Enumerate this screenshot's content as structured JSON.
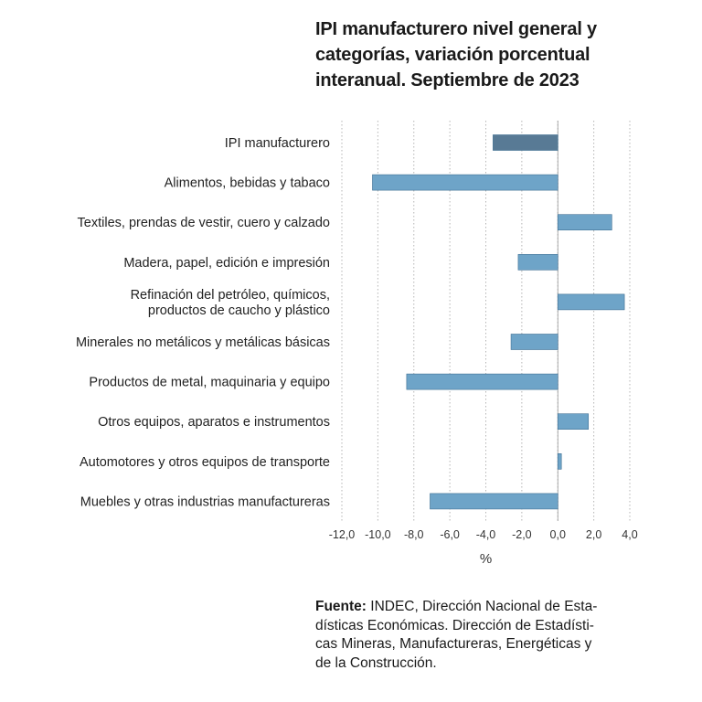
{
  "chart_data": {
    "type": "bar",
    "orientation": "horizontal",
    "title_lines": [
      "IPI manufacturero nivel general y",
      "categorías, variación porcentual",
      "interanual. Septiembre de 2023"
    ],
    "categories": [
      "IPI manufacturero",
      "Alimentos, bebidas y tabaco",
      "Textiles, prendas de vestir, cuero y calzado",
      "Madera, papel, edición e impresión",
      "Refinación del petróleo, químicos,\nproductos de caucho y plástico",
      "Minerales no metálicos y metálicas básicas",
      "Productos de metal, maquinaria y equipo",
      "Otros equipos, aparatos e instrumentos",
      "Automotores y otros equipos de transporte",
      "Muebles y otras industrias manufactureras"
    ],
    "values": [
      -3.6,
      -10.3,
      3.0,
      -2.2,
      3.7,
      -2.6,
      -8.4,
      1.7,
      0.2,
      -7.1
    ],
    "bar_colors": [
      "#587a95",
      "#6ea4c8",
      "#6ea4c8",
      "#6ea4c8",
      "#6ea4c8",
      "#6ea4c8",
      "#6ea4c8",
      "#6ea4c8",
      "#6ea4c8",
      "#6ea4c8"
    ],
    "xlim": [
      -12,
      4
    ],
    "xticks": [
      -12,
      -10,
      -8,
      -6,
      -4,
      -2,
      0,
      2,
      4
    ],
    "xtick_labels": [
      "-12,0",
      "-10,0",
      "-8,0",
      "-6,0",
      "-4,0",
      "-2,0",
      "0,0",
      "2,0",
      "4,0"
    ],
    "xlabel": "%",
    "ylabel": "",
    "grid": "vertical dotted"
  },
  "source": {
    "label": "Fuente:",
    "line1": " INDEC, Dirección Nacional de Esta-",
    "line2": "dísticas Económicas. Dirección de Estadísti-",
    "line3": "cas Mineras, Manufactureras, Energéticas y",
    "line4": "de la Construcción."
  },
  "colors": {
    "highlight_bar": "#587a95",
    "bar": "#6ea4c8",
    "grid": "#b5b5b5",
    "axis": "#999999"
  }
}
